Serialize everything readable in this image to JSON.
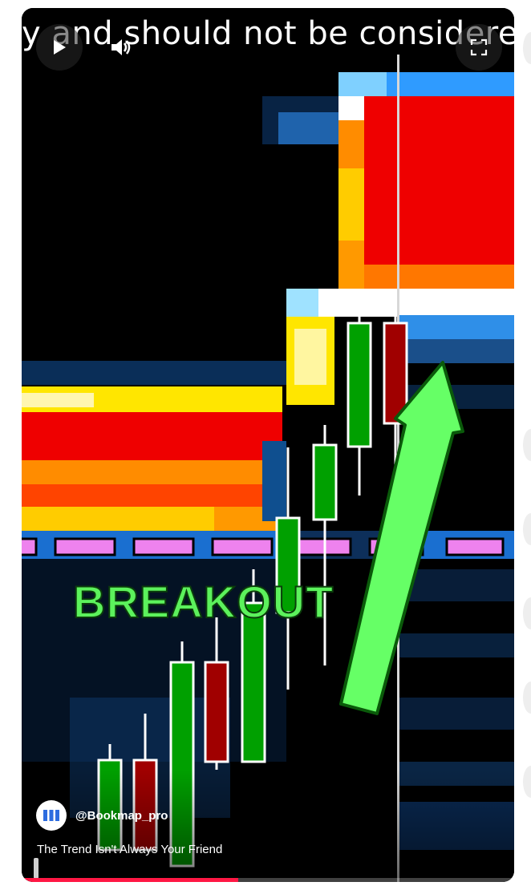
{
  "video": {
    "caption": "y and should not be considered s",
    "overlay_text": "BREAKOUT",
    "channel_name": "@Bookmap_pro",
    "title": "The Trend Isn't Always Your Friend",
    "progress_fraction": 0.44
  },
  "controls": {
    "play_icon": "play-icon",
    "volume_icon": "volume-icon",
    "fullscreen_icon": "fullscreen-icon"
  },
  "colors": {
    "accent": "#ff1744",
    "arrow": "#66ff66",
    "overlay_text": "#5cf25c"
  }
}
